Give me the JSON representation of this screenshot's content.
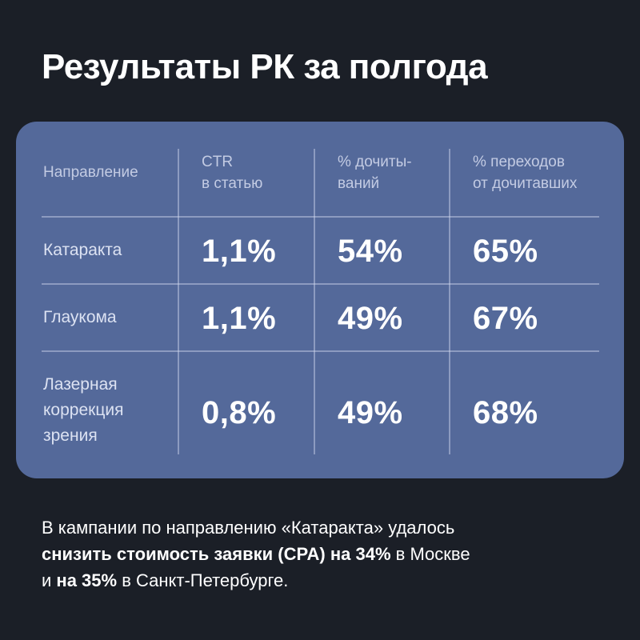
{
  "title": "Результаты РК за полгода",
  "table": {
    "headers": [
      [
        "Направление"
      ],
      [
        "CTR",
        "в статью"
      ],
      [
        "% дочиты-",
        "ваний"
      ],
      [
        "% переходов",
        "от дочитавших"
      ]
    ],
    "rows": [
      {
        "label": [
          "Катаракта"
        ],
        "ctr": "1,1%",
        "read": "54%",
        "transitions": "65%"
      },
      {
        "label": [
          "Глаукома"
        ],
        "ctr": "1,1%",
        "read": "49%",
        "transitions": "67%"
      },
      {
        "label": [
          "Лазерная",
          "коррекция",
          "зрения"
        ],
        "ctr": "0,8%",
        "read": "49%",
        "transitions": "68%"
      }
    ]
  },
  "footer": {
    "line1": "В кампании по направлению «Катаракта» удалось",
    "line2_bold": "снизить стоимость заявки (CPA) на 34%",
    "line2_rest": " в Москве",
    "line3_pre": "и ",
    "line3_bold": "на 35%",
    "line3_rest": " в Санкт-Петербурге."
  },
  "colors": {
    "background": "#1b1f27",
    "card": "#54699a",
    "header_text": "#c3cbe3",
    "value_text": "#ffffff"
  }
}
